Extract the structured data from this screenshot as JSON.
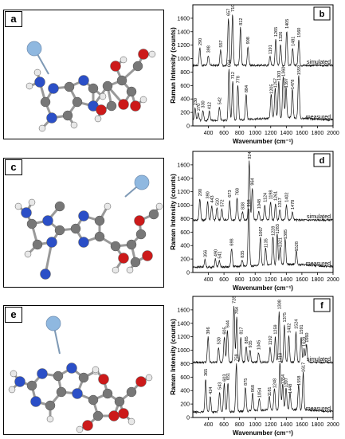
{
  "panel_labels": [
    "a",
    "b",
    "c",
    "d",
    "e",
    "f"
  ],
  "chart_data": [
    {
      "type": "line",
      "panel": "b",
      "xlabel": "Wavenumber (cm⁻¹)",
      "ylabel": "Raman Intensity (counts)",
      "xlim": [
        200,
        2000
      ],
      "ylim": [
        0,
        1800
      ],
      "x_ticks": [
        400,
        600,
        800,
        1000,
        1200,
        1400,
        1600,
        1800,
        2000
      ],
      "y_ticks": [
        0,
        200,
        400,
        600,
        800,
        1000,
        1200,
        1400,
        1600
      ],
      "series": [
        {
          "name": "simulated",
          "baseline": 900,
          "peaks": [
            {
              "x": 290,
              "h": 260,
              "label": "290"
            },
            {
              "x": 398,
              "h": 150,
              "label": "398"
            },
            {
              "x": 557,
              "h": 230,
              "label": "557"
            },
            {
              "x": 657,
              "h": 700,
              "label": "657"
            },
            {
              "x": 710,
              "h": 760,
              "label": "710"
            },
            {
              "x": 812,
              "h": 560,
              "label": "812"
            },
            {
              "x": 908,
              "h": 280,
              "label": "908"
            },
            {
              "x": 1191,
              "h": 130,
              "label": "1191"
            },
            {
              "x": 1265,
              "h": 390,
              "label": "1265"
            },
            {
              "x": 1326,
              "h": 320,
              "label": "1326"
            },
            {
              "x": 1405,
              "h": 510,
              "label": "1405"
            },
            {
              "x": 1481,
              "h": 250,
              "label": "1481"
            },
            {
              "x": 1560,
              "h": 380,
              "label": "1560"
            }
          ]
        },
        {
          "name": "measured",
          "baseline": 80,
          "peaks": [
            {
              "x": 230,
              "h": 190,
              "label": "230"
            },
            {
              "x": 270,
              "h": 110,
              "label": "270"
            },
            {
              "x": 330,
              "h": 150,
              "label": "330"
            },
            {
              "x": 412,
              "h": 130,
              "label": "412"
            },
            {
              "x": 542,
              "h": 200,
              "label": "542"
            },
            {
              "x": 664,
              "h": 760,
              "label": "664"
            },
            {
              "x": 712,
              "h": 580,
              "label": "712"
            },
            {
              "x": 778,
              "h": 520,
              "label": "778"
            },
            {
              "x": 884,
              "h": 380,
              "label": "884"
            },
            {
              "x": 1205,
              "h": 360,
              "label": "1205"
            },
            {
              "x": 1257,
              "h": 450,
              "label": "1257"
            },
            {
              "x": 1303,
              "h": 560,
              "label": "1303"
            },
            {
              "x": 1360,
              "h": 620,
              "label": "1360"
            },
            {
              "x": 1397,
              "h": 450,
              "label": "1397"
            },
            {
              "x": 1478,
              "h": 430,
              "label": "1478"
            },
            {
              "x": 1559,
              "h": 640,
              "label": "1559"
            }
          ]
        }
      ]
    },
    {
      "type": "line",
      "panel": "d",
      "xlabel": "Wavenumber (cm⁻¹)",
      "ylabel": "Raman Intensity (counts)",
      "xlim": [
        200,
        2000
      ],
      "ylim": [
        0,
        1800
      ],
      "x_ticks": [
        400,
        600,
        800,
        1000,
        1200,
        1400,
        1600,
        1800,
        2000
      ],
      "y_ticks": [
        0,
        200,
        400,
        600,
        800,
        1000,
        1200,
        1400,
        1600
      ],
      "series": [
        {
          "name": "simulated",
          "baseline": 780,
          "peaks": [
            {
              "x": 290,
              "h": 320,
              "label": "290"
            },
            {
              "x": 390,
              "h": 280,
              "label": "390"
            },
            {
              "x": 443,
              "h": 220,
              "label": "443"
            },
            {
              "x": 510,
              "h": 180,
              "label": "510"
            },
            {
              "x": 572,
              "h": 160,
              "label": "572"
            },
            {
              "x": 673,
              "h": 300,
              "label": "673"
            },
            {
              "x": 768,
              "h": 330,
              "label": "768"
            },
            {
              "x": 838,
              "h": 120,
              "label": "838"
            },
            {
              "x": 924,
              "h": 870,
              "label": "924"
            },
            {
              "x": 964,
              "h": 480,
              "label": "964"
            },
            {
              "x": 1048,
              "h": 130,
              "label": "1048"
            },
            {
              "x": 1124,
              "h": 230,
              "label": "1124"
            },
            {
              "x": 1198,
              "h": 270,
              "label": "1198"
            },
            {
              "x": 1261,
              "h": 250,
              "label": "1261"
            },
            {
              "x": 1317,
              "h": 150,
              "label": "1317"
            },
            {
              "x": 1402,
              "h": 230,
              "label": "1402"
            },
            {
              "x": 1478,
              "h": 120,
              "label": "1478"
            }
          ]
        },
        {
          "name": "measured",
          "baseline": 80,
          "peaks": [
            {
              "x": 356,
              "h": 110,
              "label": "356"
            },
            {
              "x": 490,
              "h": 120,
              "label": "490"
            },
            {
              "x": 541,
              "h": 90,
              "label": "541"
            },
            {
              "x": 698,
              "h": 280,
              "label": "698"
            },
            {
              "x": 835,
              "h": 100,
              "label": "835"
            },
            {
              "x": 918,
              "h": 860,
              "label": "918"
            },
            {
              "x": 1067,
              "h": 420,
              "label": "1067"
            },
            {
              "x": 1135,
              "h": 250,
              "label": "1135"
            },
            {
              "x": 1228,
              "h": 430,
              "label": "1228"
            },
            {
              "x": 1283,
              "h": 460,
              "label": "1283"
            },
            {
              "x": 1321,
              "h": 260,
              "label": "1321"
            },
            {
              "x": 1385,
              "h": 380,
              "label": "1385"
            },
            {
              "x": 1528,
              "h": 200,
              "label": "1528"
            }
          ]
        }
      ]
    },
    {
      "type": "line",
      "panel": "f",
      "xlabel": "Wavenumber (cm⁻¹)",
      "ylabel": "Raman Intensity (counts)",
      "xlim": [
        200,
        2000
      ],
      "ylim": [
        0,
        1800
      ],
      "x_ticks": [
        400,
        600,
        800,
        1000,
        1200,
        1400,
        1600,
        1800,
        2000
      ],
      "y_ticks": [
        0,
        200,
        400,
        600,
        800,
        1000,
        1200,
        1400,
        1600
      ],
      "series": [
        {
          "name": "simulated",
          "baseline": 820,
          "peaks": [
            {
              "x": 396,
              "h": 380,
              "label": "396"
            },
            {
              "x": 530,
              "h": 230,
              "label": "530"
            },
            {
              "x": 605,
              "h": 380,
              "label": "605"
            },
            {
              "x": 644,
              "h": 480,
              "label": "644"
            },
            {
              "x": 728,
              "h": 840,
              "label": "728"
            },
            {
              "x": 764,
              "h": 680,
              "label": "764"
            },
            {
              "x": 817,
              "h": 380,
              "label": "817"
            },
            {
              "x": 885,
              "h": 240,
              "label": "885"
            },
            {
              "x": 935,
              "h": 180,
              "label": "935"
            },
            {
              "x": 1045,
              "h": 150,
              "label": "1045"
            },
            {
              "x": 1192,
              "h": 220,
              "label": "1192"
            },
            {
              "x": 1259,
              "h": 380,
              "label": "1259"
            },
            {
              "x": 1308,
              "h": 750,
              "label": "1308"
            },
            {
              "x": 1375,
              "h": 560,
              "label": "1375"
            },
            {
              "x": 1432,
              "h": 400,
              "label": "1432"
            },
            {
              "x": 1524,
              "h": 460,
              "label": "1524"
            },
            {
              "x": 1591,
              "h": 380,
              "label": "1591"
            },
            {
              "x": 1628,
              "h": 200,
              "label": "1628"
            },
            {
              "x": 1660,
              "h": 260,
              "label": "1660"
            }
          ]
        },
        {
          "name": "measured",
          "baseline": 80,
          "peaks": [
            {
              "x": 365,
              "h": 500,
              "label": "365"
            },
            {
              "x": 424,
              "h": 230,
              "label": "424"
            },
            {
              "x": 543,
              "h": 300,
              "label": "543"
            },
            {
              "x": 603,
              "h": 420,
              "label": "603"
            },
            {
              "x": 651,
              "h": 440,
              "label": "651"
            },
            {
              "x": 759,
              "h": 720,
              "label": "759"
            },
            {
              "x": 875,
              "h": 360,
              "label": "875"
            },
            {
              "x": 968,
              "h": 260,
              "label": "968"
            },
            {
              "x": 1054,
              "h": 180,
              "label": "1054"
            },
            {
              "x": 1181,
              "h": 200,
              "label": "1181"
            },
            {
              "x": 1248,
              "h": 320,
              "label": "1248"
            },
            {
              "x": 1318,
              "h": 700,
              "label": "1318"
            },
            {
              "x": 1354,
              "h": 380,
              "label": "1354"
            },
            {
              "x": 1397,
              "h": 330,
              "label": "1397"
            },
            {
              "x": 1448,
              "h": 240,
              "label": "1448"
            },
            {
              "x": 1558,
              "h": 360,
              "label": "1558"
            },
            {
              "x": 1617,
              "h": 560,
              "label": "1617"
            }
          ]
        }
      ]
    }
  ],
  "molecules": [
    {
      "panel": "a",
      "probe_color": "#8fb8e0"
    },
    {
      "panel": "c",
      "probe_color": "#8fb8e0"
    },
    {
      "panel": "e",
      "probe_color": "#8fb8e0"
    }
  ],
  "colors": {
    "carbon": "#777777",
    "nitrogen": "#2b4fc7",
    "oxygen": "#cc1a1a",
    "hydrogen": "#e8e8e8",
    "probe": "#8fb8e0"
  }
}
